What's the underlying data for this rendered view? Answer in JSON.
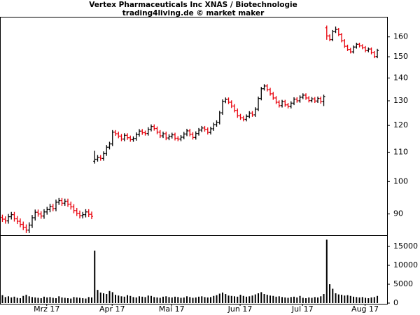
{
  "chart_data": [
    {
      "type": "ohlc",
      "title": "Vertex Pharmaceuticals Inc XNAS / Biotechnologie",
      "subtitle": "trading4living.de © market maker",
      "x": [
        0,
        1,
        2,
        3,
        4,
        5,
        6,
        7,
        8,
        9,
        10,
        11,
        12,
        13,
        14,
        15,
        16,
        17,
        18,
        19,
        20,
        21,
        22,
        23,
        24,
        25,
        26,
        27,
        28,
        29,
        30,
        31,
        32,
        33,
        34,
        35,
        36,
        37,
        38,
        39,
        40,
        41,
        42,
        43,
        44,
        45,
        46,
        47,
        48,
        49,
        50,
        51,
        52,
        53,
        54,
        55,
        56,
        57,
        58,
        59,
        60,
        61,
        62,
        63,
        64,
        65,
        66,
        67,
        68,
        69,
        70,
        71,
        72,
        73,
        74,
        75,
        76,
        77,
        78,
        79,
        80,
        81,
        82,
        83,
        84,
        85,
        86,
        87,
        88,
        89,
        90,
        91,
        92,
        93,
        94,
        95,
        96,
        97,
        98,
        99,
        100,
        101,
        102,
        103,
        104,
        105,
        106,
        107,
        108,
        109,
        110,
        111,
        112,
        113,
        114,
        115,
        116,
        117,
        118,
        119,
        120,
        121,
        122,
        123,
        124,
        125,
        126
      ],
      "open": [
        89.0,
        88.5,
        88.0,
        89.2,
        89.8,
        88.6,
        87.9,
        87.0,
        86.2,
        85.4,
        86.8,
        88.9,
        90.5,
        90.0,
        89.4,
        90.6,
        91.3,
        92.2,
        91.6,
        93.5,
        94.0,
        93.2,
        93.8,
        92.9,
        92.1,
        91.0,
        90.2,
        89.5,
        89.8,
        90.6,
        89.9,
        106.8,
        107.5,
        108.2,
        107.8,
        109.5,
        111.8,
        113.0,
        117.4,
        116.8,
        115.9,
        114.8,
        116.2,
        115.3,
        114.6,
        115.0,
        116.5,
        117.8,
        117.2,
        116.9,
        118.5,
        119.6,
        118.8,
        117.4,
        116.0,
        116.8,
        115.2,
        115.8,
        116.4,
        115.1,
        114.8,
        115.5,
        116.7,
        117.9,
        116.6,
        115.4,
        116.9,
        118.2,
        119.0,
        118.4,
        117.3,
        118.7,
        120.3,
        121.2,
        125.0,
        129.8,
        130.6,
        129.4,
        127.8,
        126.0,
        123.8,
        123.0,
        122.4,
        123.6,
        124.9,
        124.2,
        126.5,
        131.0,
        135.2,
        136.4,
        134.8,
        133.0,
        131.2,
        129.4,
        128.0,
        129.6,
        128.3,
        127.6,
        129.0,
        130.7,
        130.0,
        131.5,
        132.4,
        131.2,
        130.1,
        130.8,
        129.9,
        131.0,
        129.6,
        164.8,
        160.5,
        158.6,
        162.8,
        163.9,
        161.2,
        158.0,
        155.2,
        153.6,
        152.4,
        154.8,
        156.2,
        155.4,
        154.5,
        153.0,
        153.8,
        152.0,
        150.1
      ],
      "high": [
        89.8,
        89.3,
        90.0,
        90.6,
        90.6,
        89.4,
        88.7,
        87.8,
        87.0,
        87.6,
        89.7,
        91.3,
        91.3,
        90.8,
        91.4,
        92.1,
        93.0,
        93.0,
        94.3,
        94.8,
        94.8,
        94.6,
        94.6,
        93.7,
        92.9,
        91.8,
        91.0,
        90.6,
        91.4,
        91.4,
        90.7,
        110.5,
        109.0,
        109.0,
        110.3,
        112.6,
        113.8,
        118.2,
        118.2,
        117.6,
        116.7,
        117.0,
        117.0,
        116.1,
        115.8,
        117.3,
        118.6,
        118.6,
        118.0,
        119.3,
        120.4,
        120.4,
        119.6,
        118.2,
        117.6,
        117.6,
        116.6,
        117.2,
        117.2,
        115.9,
        116.3,
        117.5,
        118.7,
        118.7,
        117.4,
        117.7,
        119.0,
        119.8,
        119.8,
        119.2,
        119.5,
        121.1,
        122.0,
        125.8,
        130.6,
        131.4,
        131.4,
        130.2,
        128.6,
        126.8,
        124.6,
        123.8,
        124.4,
        125.7,
        125.7,
        127.3,
        131.8,
        136.0,
        137.2,
        137.2,
        135.6,
        133.8,
        132.0,
        130.2,
        130.4,
        130.4,
        129.1,
        129.8,
        131.5,
        131.5,
        132.3,
        133.2,
        133.2,
        132.0,
        131.6,
        131.6,
        131.8,
        131.8,
        132.6,
        166.0,
        161.3,
        163.6,
        165.5,
        164.7,
        162.0,
        158.8,
        156.0,
        154.4,
        155.6,
        157.0,
        157.0,
        156.2,
        155.3,
        154.6,
        154.6,
        152.8,
        153.9
      ],
      "low": [
        87.7,
        87.2,
        87.2,
        88.4,
        87.8,
        87.1,
        86.2,
        85.4,
        84.6,
        84.6,
        86.0,
        88.1,
        89.2,
        88.6,
        88.6,
        89.8,
        90.5,
        90.8,
        90.8,
        92.7,
        92.4,
        92.4,
        92.1,
        91.3,
        90.2,
        89.4,
        88.7,
        88.7,
        89.0,
        89.1,
        88.5,
        106.0,
        106.7,
        107.0,
        107.0,
        108.7,
        111.0,
        112.2,
        116.0,
        115.1,
        114.0,
        114.0,
        114.5,
        113.8,
        113.8,
        114.2,
        115.7,
        116.4,
        116.1,
        116.1,
        117.7,
        118.0,
        116.6,
        115.2,
        115.2,
        114.4,
        114.4,
        115.0,
        114.3,
        114.0,
        114.0,
        114.7,
        115.9,
        115.8,
        114.6,
        114.6,
        116.1,
        117.4,
        117.6,
        116.5,
        116.5,
        117.9,
        119.5,
        120.4,
        124.2,
        129.0,
        128.6,
        127.0,
        125.2,
        123.0,
        122.2,
        121.6,
        121.6,
        122.8,
        123.4,
        123.4,
        125.7,
        130.2,
        134.4,
        134.0,
        132.2,
        130.4,
        128.6,
        127.2,
        127.2,
        127.5,
        126.8,
        126.8,
        128.2,
        129.2,
        129.2,
        130.7,
        130.4,
        129.3,
        129.3,
        129.1,
        129.1,
        128.8,
        127.8,
        158.5,
        157.8,
        157.8,
        162.0,
        160.4,
        157.2,
        154.4,
        152.8,
        151.6,
        151.6,
        154.0,
        154.6,
        153.7,
        152.2,
        152.2,
        151.2,
        149.3,
        149.3
      ],
      "close": [
        88.5,
        88.0,
        89.2,
        89.8,
        88.6,
        87.9,
        87.0,
        86.2,
        85.4,
        86.8,
        88.9,
        90.5,
        90.0,
        89.4,
        90.6,
        91.3,
        92.2,
        91.6,
        93.5,
        94.0,
        93.2,
        93.8,
        92.9,
        92.1,
        91.0,
        90.2,
        89.5,
        89.8,
        90.6,
        89.9,
        89.3,
        107.5,
        108.2,
        107.8,
        109.5,
        111.8,
        113.0,
        117.4,
        116.8,
        115.9,
        114.8,
        116.2,
        115.3,
        114.6,
        115.0,
        116.5,
        117.8,
        117.2,
        116.9,
        118.5,
        119.6,
        118.8,
        117.4,
        116.0,
        116.8,
        115.2,
        115.8,
        116.4,
        115.1,
        114.8,
        115.5,
        116.7,
        117.9,
        116.6,
        115.4,
        116.9,
        118.2,
        119.0,
        118.4,
        117.3,
        118.7,
        120.3,
        121.2,
        125.0,
        129.8,
        130.6,
        129.4,
        127.8,
        126.0,
        123.8,
        123.0,
        122.4,
        123.6,
        124.9,
        124.2,
        126.5,
        131.0,
        135.2,
        136.4,
        134.8,
        133.0,
        131.2,
        129.4,
        128.0,
        129.6,
        128.3,
        127.6,
        129.0,
        130.7,
        130.0,
        131.5,
        132.4,
        131.2,
        130.1,
        130.8,
        129.9,
        131.0,
        129.6,
        131.8,
        160.5,
        158.6,
        162.8,
        163.9,
        161.2,
        158.0,
        155.2,
        153.6,
        152.4,
        154.8,
        156.2,
        155.4,
        154.5,
        153.0,
        153.8,
        152.0,
        150.1,
        153.1
      ],
      "up_color": "#000000",
      "down_color": "#e8000b",
      "xlim": [
        -0.7,
        129.4
      ],
      "ylim": [
        84,
        170.4
      ],
      "log_scale": true,
      "yticks": [
        90,
        100,
        110,
        120,
        130,
        140,
        150,
        160
      ]
    },
    {
      "type": "bar",
      "x": [
        0,
        1,
        2,
        3,
        4,
        5,
        6,
        7,
        8,
        9,
        10,
        11,
        12,
        13,
        14,
        15,
        16,
        17,
        18,
        19,
        20,
        21,
        22,
        23,
        24,
        25,
        26,
        27,
        28,
        29,
        30,
        31,
        32,
        33,
        34,
        35,
        36,
        37,
        38,
        39,
        40,
        41,
        42,
        43,
        44,
        45,
        46,
        47,
        48,
        49,
        50,
        51,
        52,
        53,
        54,
        55,
        56,
        57,
        58,
        59,
        60,
        61,
        62,
        63,
        64,
        65,
        66,
        67,
        68,
        69,
        70,
        71,
        72,
        73,
        74,
        75,
        76,
        77,
        78,
        79,
        80,
        81,
        82,
        83,
        84,
        85,
        86,
        87,
        88,
        89,
        90,
        91,
        92,
        93,
        94,
        95,
        96,
        97,
        98,
        99,
        100,
        101,
        102,
        103,
        104,
        105,
        106,
        107,
        108,
        109,
        110,
        111,
        112,
        113,
        114,
        115,
        116,
        117,
        118,
        119,
        120,
        121,
        122,
        123,
        124,
        125,
        126
      ],
      "values": [
        2100,
        1600,
        1800,
        1500,
        1700,
        1400,
        1300,
        1900,
        2200,
        1800,
        1600,
        1500,
        1400,
        1300,
        1700,
        1500,
        1600,
        1400,
        1300,
        1800,
        1500,
        1400,
        1300,
        1200,
        1600,
        1500,
        1400,
        1300,
        1200,
        1600,
        1500,
        13900,
        3500,
        2800,
        2600,
        2400,
        3200,
        2900,
        2200,
        2000,
        1800,
        1700,
        2100,
        1900,
        1600,
        1500,
        1800,
        1700,
        1600,
        2000,
        1900,
        1600,
        1500,
        1400,
        1700,
        1800,
        1600,
        1500,
        1700,
        1600,
        1400,
        1500,
        1800,
        1600,
        1400,
        1500,
        1700,
        1800,
        1600,
        1500,
        1600,
        1900,
        2100,
        2500,
        2800,
        2400,
        2000,
        1900,
        1800,
        1700,
        2200,
        1900,
        1700,
        1800,
        2000,
        2300,
        2600,
        2900,
        2400,
        2200,
        2000,
        1900,
        1700,
        1800,
        1600,
        1500,
        1400,
        1600,
        1700,
        1500,
        1900,
        1400,
        1300,
        1500,
        1400,
        1600,
        1500,
        1800,
        2400,
        16800,
        5000,
        3800,
        2600,
        2300,
        2200,
        2000,
        2100,
        1900,
        1700,
        1600,
        1500,
        1600,
        1400,
        1300,
        1500,
        1600,
        1900
      ],
      "color": "#000000",
      "xlim": [
        -0.7,
        129.4
      ],
      "ylim": [
        0,
        17800
      ],
      "yticks": [
        0,
        5000,
        10000,
        15000
      ],
      "xticks": [
        {
          "value": 15,
          "label": "Mrz 17"
        },
        {
          "value": 37,
          "label": "Apr 17"
        },
        {
          "value": 57,
          "label": "Mai 17"
        },
        {
          "value": 80,
          "label": "Jun 17"
        },
        {
          "value": 101,
          "label": "Jul 17"
        },
        {
          "value": 122,
          "label": "Aug 17"
        }
      ]
    }
  ]
}
